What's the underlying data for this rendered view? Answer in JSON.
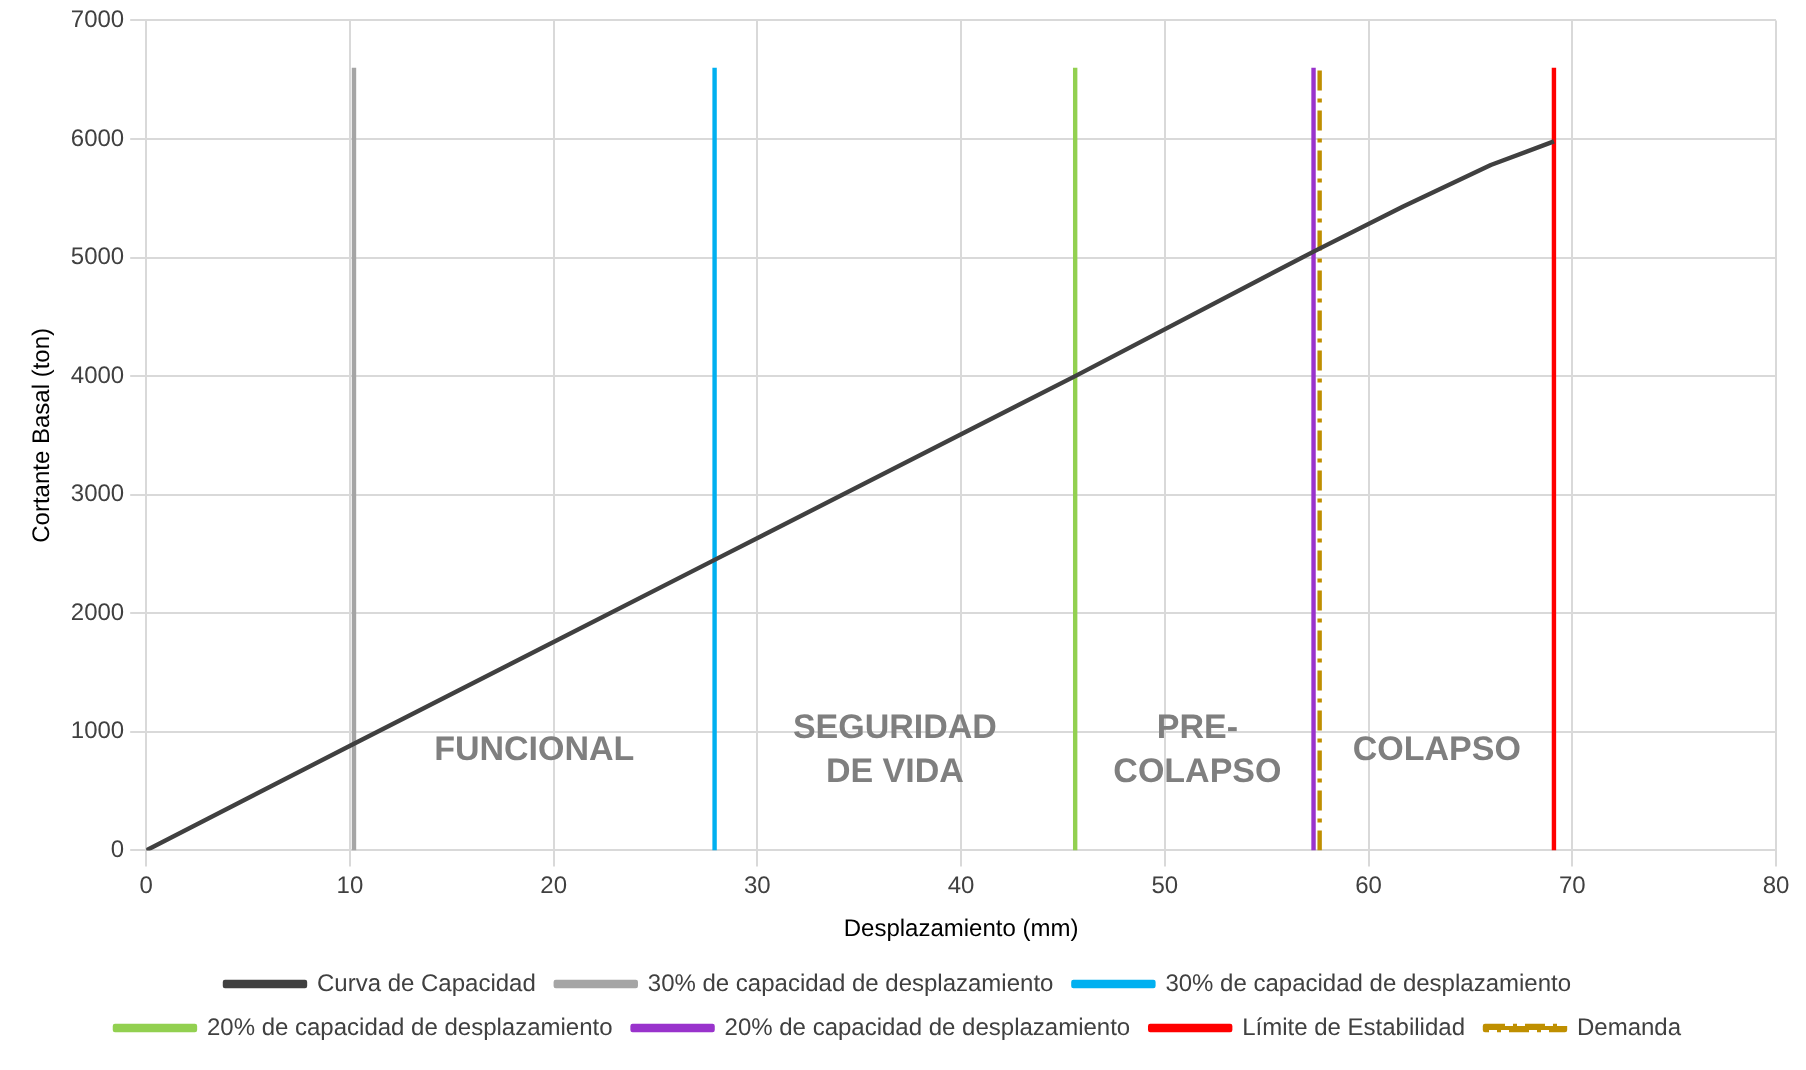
{
  "chart_data": {
    "type": "line",
    "xlabel": "Desplazamiento (mm)",
    "ylabel": "Cortante Basal (ton)",
    "xlim": [
      0,
      80
    ],
    "xticks": [
      0,
      10,
      20,
      30,
      40,
      50,
      60,
      70,
      80
    ],
    "ylim": [
      0,
      7000
    ],
    "yticks": [
      0,
      1000,
      2000,
      3000,
      4000,
      5000,
      6000,
      7000
    ],
    "grid": true,
    "legend": "bottom",
    "marker": "none",
    "series": [
      {
        "name": "Curva de Capacidad",
        "color": "#404040",
        "x": [
          0,
          10.2,
          27.9,
          45.6,
          57.3,
          61.7,
          66,
          69.1
        ],
        "values": [
          0,
          900,
          2450,
          4000,
          5050,
          5430,
          5780,
          5980
        ]
      },
      {
        "name": "30% de capacidad de desplazamiento",
        "color": "#a5a5a5",
        "x": [
          10.2,
          10.2
        ],
        "values": [
          0,
          6600
        ]
      },
      {
        "name": "30% de capacidad de desplazamiento",
        "color": "#00b0f0",
        "x": [
          27.9,
          27.9
        ],
        "values": [
          0,
          6600
        ]
      },
      {
        "name": "20% de capacidad de desplazamiento",
        "color": "#92d050",
        "x": [
          45.6,
          45.6
        ],
        "values": [
          0,
          6600
        ]
      },
      {
        "name": "20% de capacidad de desplazamiento",
        "color": "#9933cc",
        "x": [
          57.3,
          57.3
        ],
        "values": [
          0,
          6600
        ]
      },
      {
        "name": "Límite de Estabilidad",
        "color": "#ff0000",
        "x": [
          69.1,
          69.1
        ],
        "values": [
          0,
          6600
        ]
      },
      {
        "name": "Demanda",
        "color": "#bf8f00",
        "x": [
          57.6,
          57.6
        ],
        "values": [
          0,
          6600
        ],
        "line_style": "dashed"
      }
    ],
    "annotations": [
      "FUNCIONAL",
      "SEGURIDAD\nDE VIDA",
      "PRE-\nCOLAPSO",
      "COLAPSO"
    ]
  }
}
